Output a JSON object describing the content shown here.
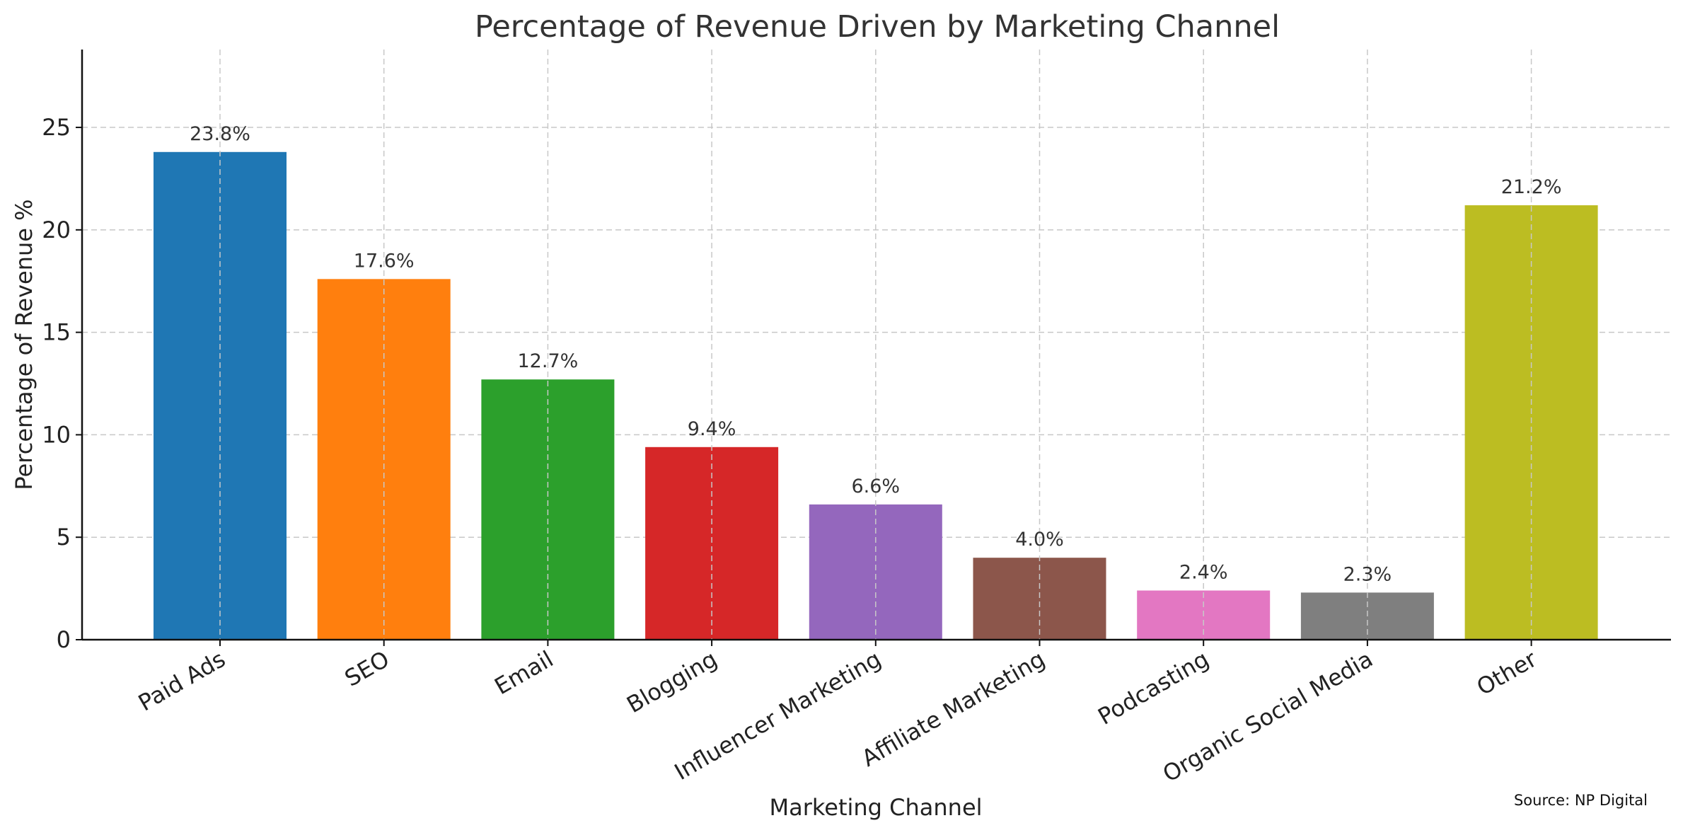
{
  "chart_data": {
    "type": "bar",
    "title": "Percentage of Revenue Driven by Marketing Channel",
    "xlabel": "Marketing Channel",
    "ylabel": "Percentage of Revenue %",
    "categories": [
      "Paid Ads",
      "SEO",
      "Email",
      "Blogging",
      "Influencer Marketing",
      "Affiliate Marketing",
      "Podcasting",
      "Organic Social Media",
      "Other"
    ],
    "values": [
      23.8,
      17.6,
      12.7,
      9.4,
      6.6,
      4.0,
      2.4,
      2.3,
      21.2
    ],
    "data_labels": [
      "23.8%",
      "17.6%",
      "12.7%",
      "9.4%",
      "6.6%",
      "4.0%",
      "2.4%",
      "2.3%",
      "21.2%"
    ],
    "colors": [
      "#1f77b4",
      "#ff7f0e",
      "#2ca02c",
      "#d62728",
      "#9467bd",
      "#8c564b",
      "#e377c2",
      "#7f7f7f",
      "#bcbd22"
    ],
    "yticks": [
      0,
      5,
      10,
      15,
      20,
      25
    ],
    "ytick_labels": [
      "0",
      "5",
      "10",
      "15",
      "20",
      "25"
    ],
    "ylim": [
      0,
      28.8
    ],
    "grid": true,
    "source": "Source: NP Digital"
  }
}
